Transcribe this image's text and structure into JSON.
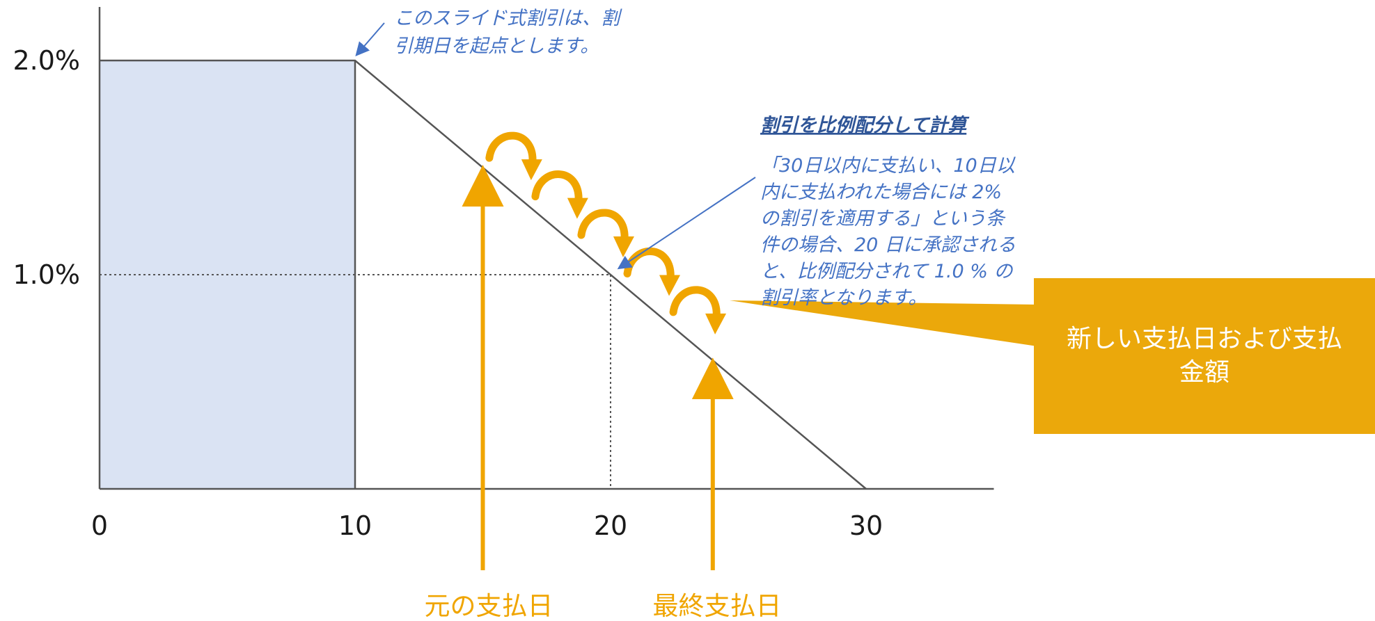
{
  "chart_data": {
    "type": "line",
    "x": [
      0,
      10,
      30
    ],
    "y": [
      2.0,
      2.0,
      0.0
    ],
    "xlim": [
      0,
      35
    ],
    "ylim": [
      0,
      2.25
    ],
    "x_ticks": [
      "0",
      "10",
      "20",
      "30"
    ],
    "y_ticks": [
      "2.0%",
      "1.0%"
    ],
    "shaded_region": {
      "x": [
        0,
        10
      ],
      "y_max": 2.0,
      "color": "#dae3f3"
    },
    "reference_point": {
      "x": 20,
      "y": 1.0
    },
    "original_pay_day": 15,
    "final_pay_day": 24,
    "annotations": {
      "top": [
        "このスライド式割引は、割",
        "引期日を起点とします。"
      ],
      "calc_heading": "割引を比例配分して計算",
      "calc_body": [
        "「30日以内に支払い、10日以",
        "内に支払われた場合には 2%",
        "の割引を適用する」という条",
        "件の場合、20 日に承認される",
        "と、比例配分されて 1.0 % の",
        "割引率となります。"
      ]
    },
    "labels": {
      "original_date": "元の支払日",
      "final_date": "最終支払日",
      "callout": "新しい支払日および支払金額"
    }
  },
  "colors": {
    "accent": "#f0a500",
    "callout_bg": "#eba80b",
    "fill": "#dae3f3",
    "note": "#4472c4"
  }
}
